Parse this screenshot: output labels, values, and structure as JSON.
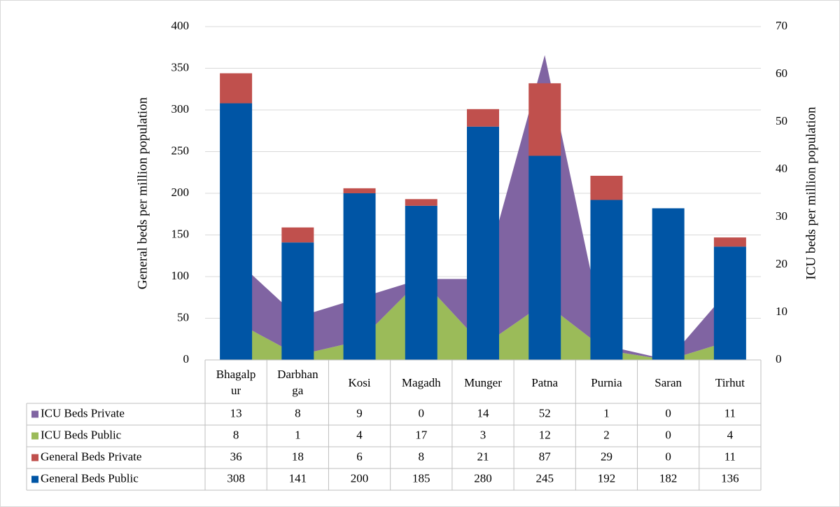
{
  "chart_data": {
    "type": "bar-area",
    "categories": [
      "Bhagalpur",
      "Darbhanga",
      "Kosi",
      "Magadh",
      "Munger",
      "Patna",
      "Purnia",
      "Saran",
      "Tirhut"
    ],
    "ylabel": "General beds per million population",
    "y2label": "ICU beds per million population",
    "ylim": [
      0,
      400
    ],
    "yticks": [
      0,
      50,
      100,
      150,
      200,
      250,
      300,
      350,
      400
    ],
    "y2lim": [
      0,
      70
    ],
    "y2ticks": [
      0,
      10,
      20,
      30,
      40,
      50,
      60,
      70
    ],
    "grid": true,
    "series": [
      {
        "name": "ICU Beds Private",
        "color": "#8064a2",
        "kind": "area",
        "axis": "y2",
        "values": [
          13,
          8,
          9,
          0,
          14,
          52,
          1,
          0,
          11
        ]
      },
      {
        "name": "ICU Beds Public",
        "color": "#9bbb59",
        "kind": "area",
        "axis": "y2",
        "values": [
          8,
          1,
          4,
          17,
          3,
          12,
          2,
          0,
          4
        ]
      },
      {
        "name": "General Beds Private",
        "color": "#c0504d",
        "kind": "bar",
        "values": [
          36,
          18,
          6,
          8,
          21,
          87,
          29,
          0,
          11
        ]
      },
      {
        "name": "General Beds Public",
        "color": "#0055a5",
        "kind": "bar",
        "values": [
          308,
          141,
          200,
          185,
          280,
          245,
          192,
          182,
          136
        ]
      }
    ]
  }
}
